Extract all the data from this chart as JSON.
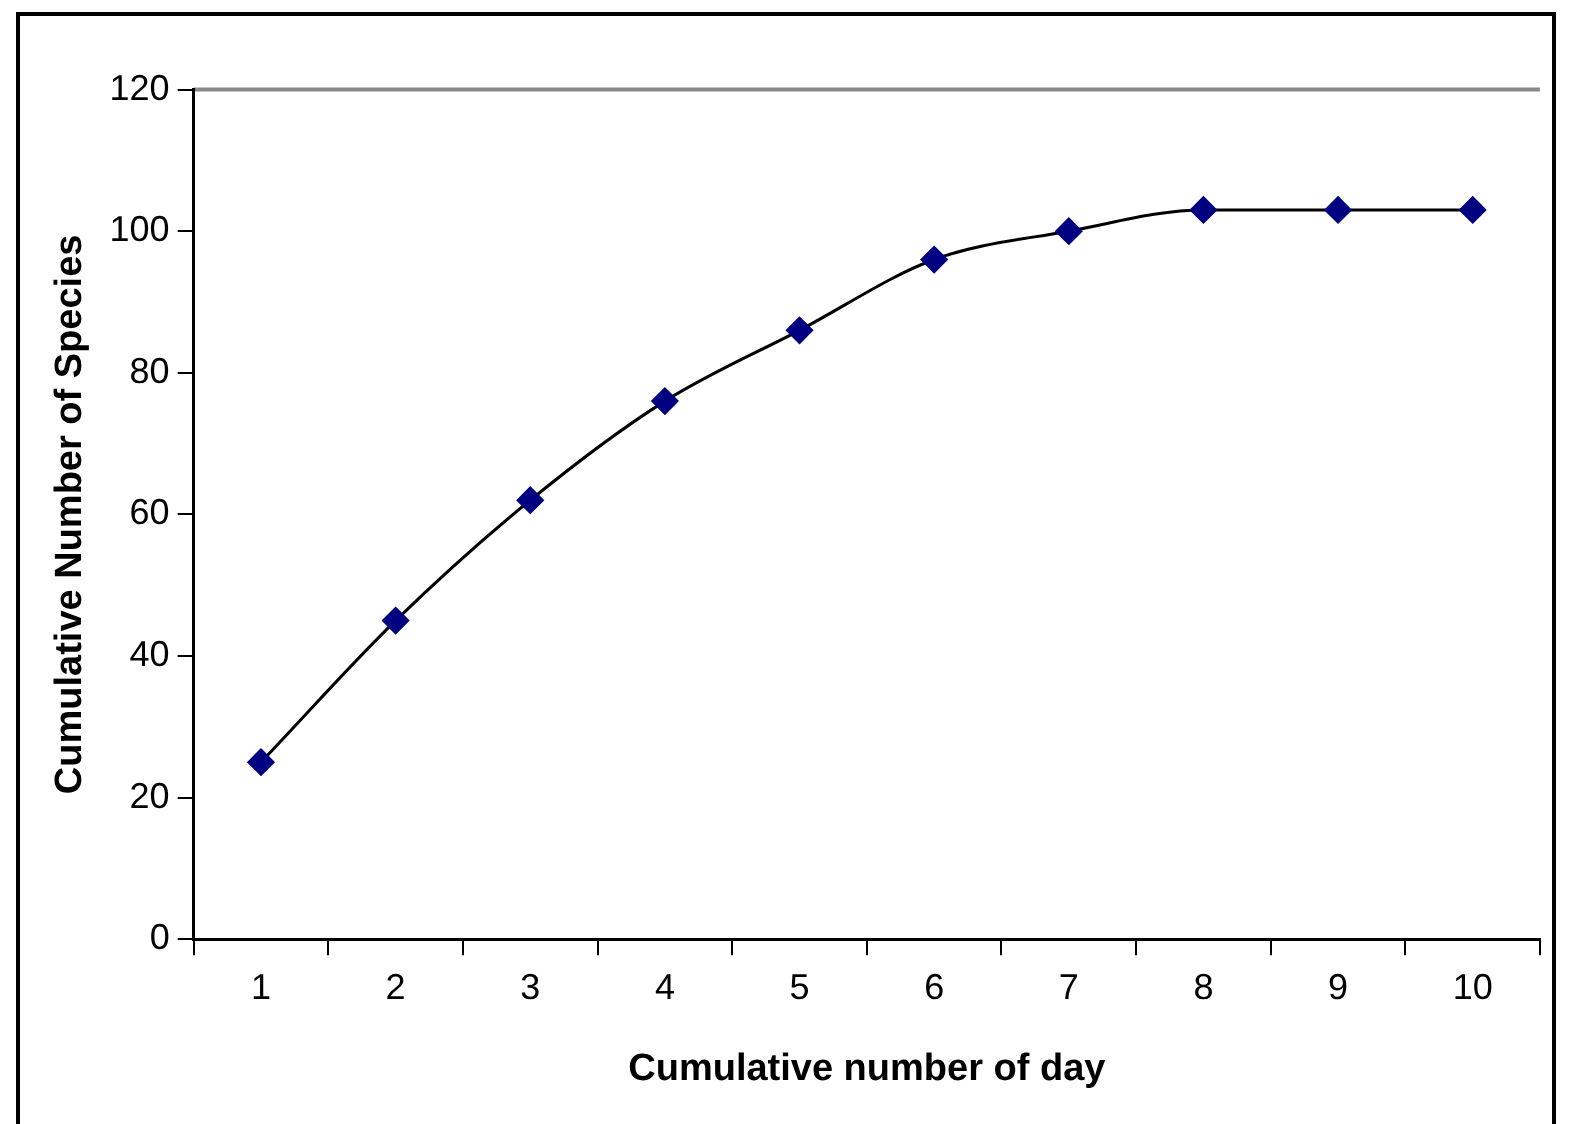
{
  "chart_data": {
    "type": "line",
    "xlabel": "Cumulative number of day",
    "ylabel": "Cumulative Number of Species",
    "categories": [
      "1",
      "2",
      "3",
      "4",
      "5",
      "6",
      "7",
      "8",
      "9",
      "10"
    ],
    "series": [
      {
        "color": "#000080",
        "values": [
          25,
          45,
          62,
          76,
          86,
          96,
          100,
          103,
          103,
          103
        ]
      }
    ],
    "ylim": [
      0,
      120
    ],
    "yticks": [
      0,
      20,
      40,
      60,
      80,
      100,
      120
    ],
    "grid": false,
    "legend": false,
    "marker": "diamond",
    "line_style": "solid"
  }
}
